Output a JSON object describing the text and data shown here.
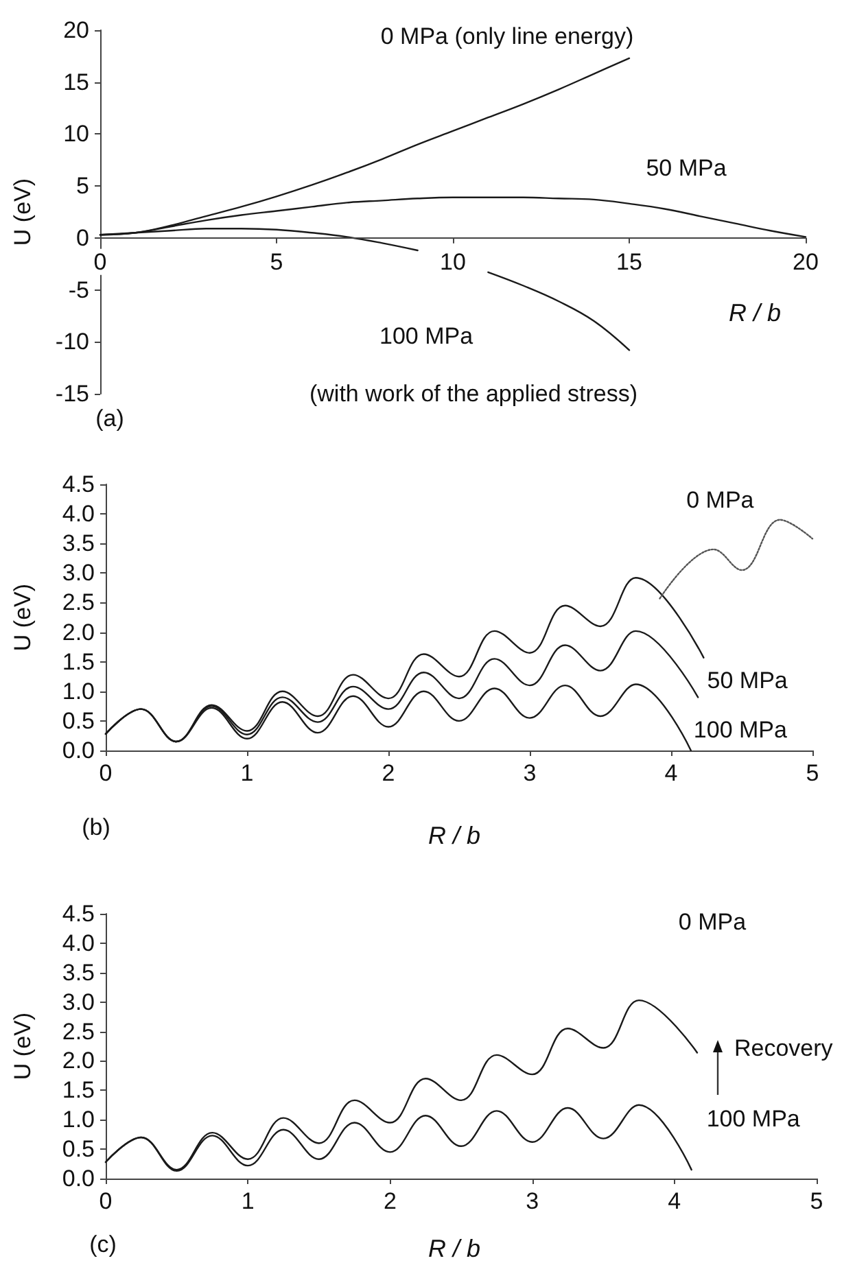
{
  "chart_data": [
    {
      "type": "line",
      "xlabel": "R / b",
      "ylabel": "U (eV)",
      "xlim": [
        0,
        20
      ],
      "ylim": [
        -15,
        20
      ],
      "xticks": [
        0,
        5,
        10,
        15,
        20
      ],
      "yticks": [
        -15,
        -10,
        -5,
        0,
        5,
        10,
        15,
        20
      ],
      "annotations": [
        "(with work of the applied stress)",
        "(a)"
      ],
      "series": [
        {
          "name": "0 MPa (only line energy)",
          "color": "#1a1a1a",
          "x": [
            0,
            1,
            2,
            3,
            4,
            5,
            6,
            7,
            8,
            9,
            10,
            11,
            12,
            13,
            14,
            15
          ],
          "values": [
            0.3,
            0.5,
            1.2,
            2.1,
            3.0,
            4.0,
            5.1,
            6.3,
            7.6,
            9.0,
            10.3,
            11.6,
            12.9,
            14.3,
            15.8,
            17.3
          ]
        },
        {
          "name": "50 MPa",
          "color": "#1a1a1a",
          "x": [
            0,
            1,
            2,
            3,
            4,
            5,
            6,
            7,
            8,
            9,
            10,
            11,
            12,
            13,
            14,
            15,
            16,
            17,
            18,
            19,
            20
          ],
          "values": [
            0.3,
            0.5,
            1.1,
            1.7,
            2.2,
            2.6,
            3.0,
            3.4,
            3.6,
            3.8,
            3.9,
            3.9,
            3.9,
            3.8,
            3.7,
            3.3,
            2.8,
            2.1,
            1.4,
            0.7,
            0.1
          ]
        },
        {
          "name": "100 MPa",
          "color": "#1a1a1a",
          "x": [
            0,
            1,
            2,
            3,
            4,
            5,
            6,
            7,
            8,
            9,
            10,
            11,
            12,
            13,
            14,
            15
          ],
          "values": [
            0.3,
            0.5,
            0.7,
            0.9,
            0.9,
            0.8,
            0.5,
            0.1,
            -0.5,
            -1.2,
            null,
            -3.3,
            -4.6,
            -6.1,
            -8.0,
            -10.8
          ]
        }
      ]
    },
    {
      "type": "line",
      "xlabel": "R / b",
      "ylabel": "U (eV)",
      "xlim": [
        0,
        5
      ],
      "ylim": [
        0,
        4.5
      ],
      "xticks": [
        0,
        1,
        2,
        3,
        4,
        5
      ],
      "yticks": [
        {
          "value": 0,
          "label": "0.0"
        },
        {
          "value": 0.5,
          "label": "0.5"
        },
        {
          "value": 1,
          "label": "1.0"
        },
        {
          "value": 1.5,
          "label": "1.5"
        },
        {
          "value": 2,
          "label": "2.0"
        },
        {
          "value": 2.5,
          "label": "2.5"
        },
        {
          "value": 3,
          "label": "3.0"
        },
        {
          "value": 3.5,
          "label": "3.5"
        },
        {
          "value": 4,
          "label": "4.0"
        },
        {
          "value": 4.5,
          "label": "4.5"
        }
      ],
      "annotations": [
        "(b)"
      ],
      "series": [
        {
          "name": "0 MPa",
          "color": "#1a1a1a",
          "x": [
            0,
            0.25,
            0.5,
            0.75,
            1,
            1.25,
            1.5,
            1.75,
            2,
            2.25,
            2.5,
            2.75,
            3,
            3.25,
            3.5,
            3.75,
            4.23
          ],
          "values": [
            0.28,
            0.7,
            0.15,
            0.77,
            0.33,
            1.0,
            0.58,
            1.28,
            0.88,
            1.63,
            1.25,
            2.02,
            1.65,
            2.45,
            2.1,
            2.92,
            1.57
          ]
        },
        {
          "name": "50 MPa",
          "color": "#1a1a1a",
          "x": [
            0,
            0.25,
            0.5,
            0.75,
            1,
            1.25,
            1.5,
            1.75,
            2,
            2.25,
            2.5,
            2.75,
            3,
            3.25,
            3.5,
            3.75,
            4.19
          ],
          "values": [
            0.28,
            0.7,
            0.15,
            0.75,
            0.27,
            0.9,
            0.48,
            1.08,
            0.7,
            1.32,
            0.88,
            1.55,
            1.1,
            1.78,
            1.35,
            2.02,
            0.9
          ]
        },
        {
          "name": "100 MPa",
          "color": "#1a1a1a",
          "x": [
            0,
            0.25,
            0.5,
            0.75,
            1,
            1.25,
            1.5,
            1.75,
            2,
            2.25,
            2.5,
            2.75,
            3,
            3.25,
            3.5,
            3.75,
            4.14
          ],
          "values": [
            0.28,
            0.7,
            0.15,
            0.72,
            0.2,
            0.82,
            0.3,
            0.92,
            0.4,
            1.0,
            0.5,
            1.05,
            0.55,
            1.1,
            0.58,
            1.12,
            0.0
          ]
        },
        {
          "color": "#555555",
          "line_style": "dotted",
          "x": [
            3.92,
            4.3,
            4.5,
            4.77,
            5
          ],
          "values": [
            2.57,
            3.4,
            3.05,
            3.9,
            3.58
          ]
        }
      ]
    },
    {
      "type": "line",
      "xlabel": "R / b",
      "ylabel": "U (eV)",
      "xlim": [
        0,
        5
      ],
      "ylim": [
        0,
        4.5
      ],
      "xticks": [
        0,
        1,
        2,
        3,
        4,
        5
      ],
      "yticks": [
        {
          "value": 0,
          "label": "0.0"
        },
        {
          "value": 0.5,
          "label": "0.5"
        },
        {
          "value": 1,
          "label": "1.0"
        },
        {
          "value": 1.5,
          "label": "1.5"
        },
        {
          "value": 2,
          "label": "2.0"
        },
        {
          "value": 2.5,
          "label": "2.5"
        },
        {
          "value": 3,
          "label": "3.0"
        },
        {
          "value": 3.5,
          "label": "3.5"
        },
        {
          "value": 4,
          "label": "4.0"
        },
        {
          "value": 4.5,
          "label": "4.5"
        }
      ],
      "annotations": [
        "Recovery",
        "(c)"
      ],
      "series": [
        {
          "name": "0 MPa",
          "color": "#1a1a1a",
          "x": [
            0,
            0.25,
            0.5,
            0.75,
            1,
            1.25,
            1.5,
            1.75,
            2,
            2.25,
            2.5,
            2.75,
            3,
            3.25,
            3.5,
            3.75,
            4.16
          ],
          "values": [
            0.28,
            0.7,
            0.15,
            0.78,
            0.33,
            1.03,
            0.6,
            1.33,
            0.95,
            1.7,
            1.33,
            2.1,
            1.77,
            2.55,
            2.22,
            3.03,
            2.14
          ]
        },
        {
          "name": "100 MPa",
          "color": "#1a1a1a",
          "x": [
            0,
            0.25,
            0.5,
            0.75,
            1,
            1.25,
            1.5,
            1.75,
            2,
            2.25,
            2.5,
            2.75,
            3,
            3.25,
            3.5,
            3.75,
            4.12
          ],
          "values": [
            0.28,
            0.7,
            0.13,
            0.73,
            0.22,
            0.83,
            0.33,
            0.95,
            0.45,
            1.07,
            0.55,
            1.15,
            0.62,
            1.2,
            0.68,
            1.25,
            0.15
          ]
        }
      ]
    }
  ]
}
